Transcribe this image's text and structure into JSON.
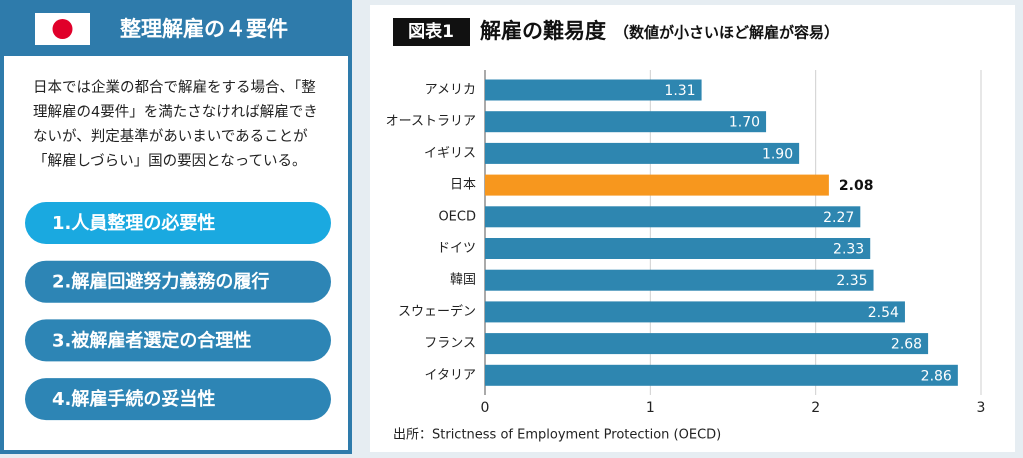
{
  "panel": {
    "title": "整理解雇の４要件",
    "body": [
      "日本では企業の都合で解雇をする場合、「整",
      "理解雇の4要件」を満たさなければ解雇でき",
      "ないが、判定基準があいまいであることが",
      "「解雇しづらい」国の要因となっている。"
    ],
    "items": [
      "1.人員整理の必要性",
      "2.解雇回避努力義務の履行",
      "3.被解雇者選定の合理性",
      "4.解雇手続の妥当性"
    ]
  },
  "chart_data": {
    "type": "bar",
    "orientation": "horizontal",
    "figure_label": "図表1",
    "title": "解雇の難易度",
    "subtitle": "（数値が小さいほど解雇が容易）",
    "categories": [
      "アメリカ",
      "オーストラリア",
      "イギリス",
      "日本",
      "OECD",
      "ドイツ",
      "韓国",
      "スウェーデン",
      "フランス",
      "イタリア"
    ],
    "values": [
      1.31,
      1.7,
      1.9,
      2.08,
      2.27,
      2.33,
      2.35,
      2.54,
      2.68,
      2.86
    ],
    "value_labels": [
      "1.31",
      "1.70",
      "1.90",
      "2.08",
      "2.27",
      "2.33",
      "2.35",
      "2.54",
      "2.68",
      "2.86"
    ],
    "color": "#2e86b0",
    "colors": [
      "#2e86b0",
      "#2e86b0",
      "#2e86b0",
      "#f7971e",
      "#2e86b0",
      "#2e86b0",
      "#2e86b0",
      "#2e86b0",
      "#2e86b0",
      "#2e86b0"
    ],
    "xlim": [
      0,
      3
    ],
    "xticks": [
      0,
      1,
      2,
      3
    ],
    "grid": true,
    "source": "出所：Strictness of Employment Protection (OECD)"
  }
}
